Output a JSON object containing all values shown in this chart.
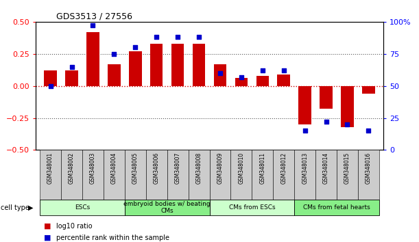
{
  "title": "GDS3513 / 27556",
  "samples": [
    "GSM348001",
    "GSM348002",
    "GSM348003",
    "GSM348004",
    "GSM348005",
    "GSM348006",
    "GSM348007",
    "GSM348008",
    "GSM348009",
    "GSM348010",
    "GSM348011",
    "GSM348012",
    "GSM348013",
    "GSM348014",
    "GSM348015",
    "GSM348016"
  ],
  "log10_ratio": [
    0.12,
    0.12,
    0.42,
    0.17,
    0.27,
    0.33,
    0.33,
    0.33,
    0.17,
    0.06,
    0.08,
    0.09,
    -0.3,
    -0.18,
    -0.32,
    -0.06
  ],
  "percentile_rank": [
    50,
    65,
    97,
    75,
    80,
    88,
    88,
    88,
    60,
    57,
    62,
    62,
    15,
    22,
    20,
    15
  ],
  "cell_types": [
    {
      "label": "ESCs",
      "start": 0,
      "end": 4,
      "color": "#ccffcc"
    },
    {
      "label": "embryoid bodies w/ beating\nCMs",
      "start": 4,
      "end": 8,
      "color": "#88ee88"
    },
    {
      "label": "CMs from ESCs",
      "start": 8,
      "end": 12,
      "color": "#ccffcc"
    },
    {
      "label": "CMs from fetal hearts",
      "start": 12,
      "end": 16,
      "color": "#88ee88"
    }
  ],
  "ylim_left": [
    -0.5,
    0.5
  ],
  "ylim_right": [
    0,
    100
  ],
  "yticks_left": [
    -0.5,
    -0.25,
    0.0,
    0.25,
    0.5
  ],
  "yticks_right": [
    0,
    25,
    50,
    75,
    100
  ],
  "ytick_labels_right": [
    "0",
    "25",
    "50",
    "75",
    "100%"
  ],
  "bar_color": "#cc0000",
  "dot_color": "#0000cc",
  "hline_color": "#cc0000",
  "dotted_color": "#555555",
  "sample_box_color": "#cccccc",
  "background_color": "#ffffff",
  "figsize": [
    6.11,
    3.54
  ],
  "dpi": 100
}
